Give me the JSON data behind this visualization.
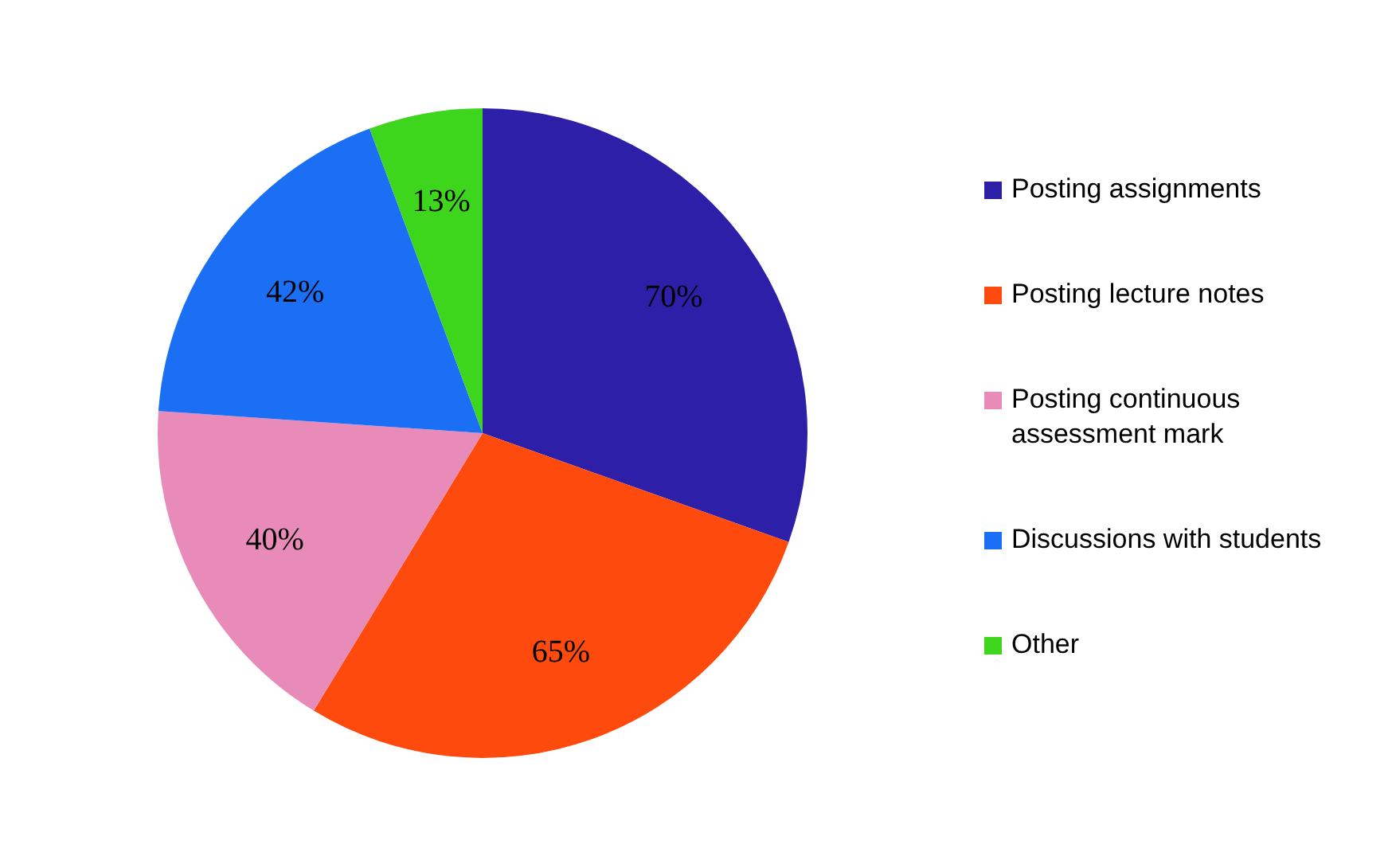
{
  "chart_data": {
    "type": "pie",
    "categories": [
      "Posting assignments",
      "Posting lecture notes",
      "Posting continuous assessment mark",
      "Discussions with students",
      "Other"
    ],
    "values": [
      70,
      65,
      40,
      42,
      13
    ],
    "colors": [
      "#2e1fa8",
      "#fe4a0c",
      "#e88bb8",
      "#1a6ff5",
      "#3dd61c"
    ],
    "value_labels": [
      "70%",
      "65%",
      "40%",
      "42%",
      "13%"
    ],
    "legend": "right"
  }
}
